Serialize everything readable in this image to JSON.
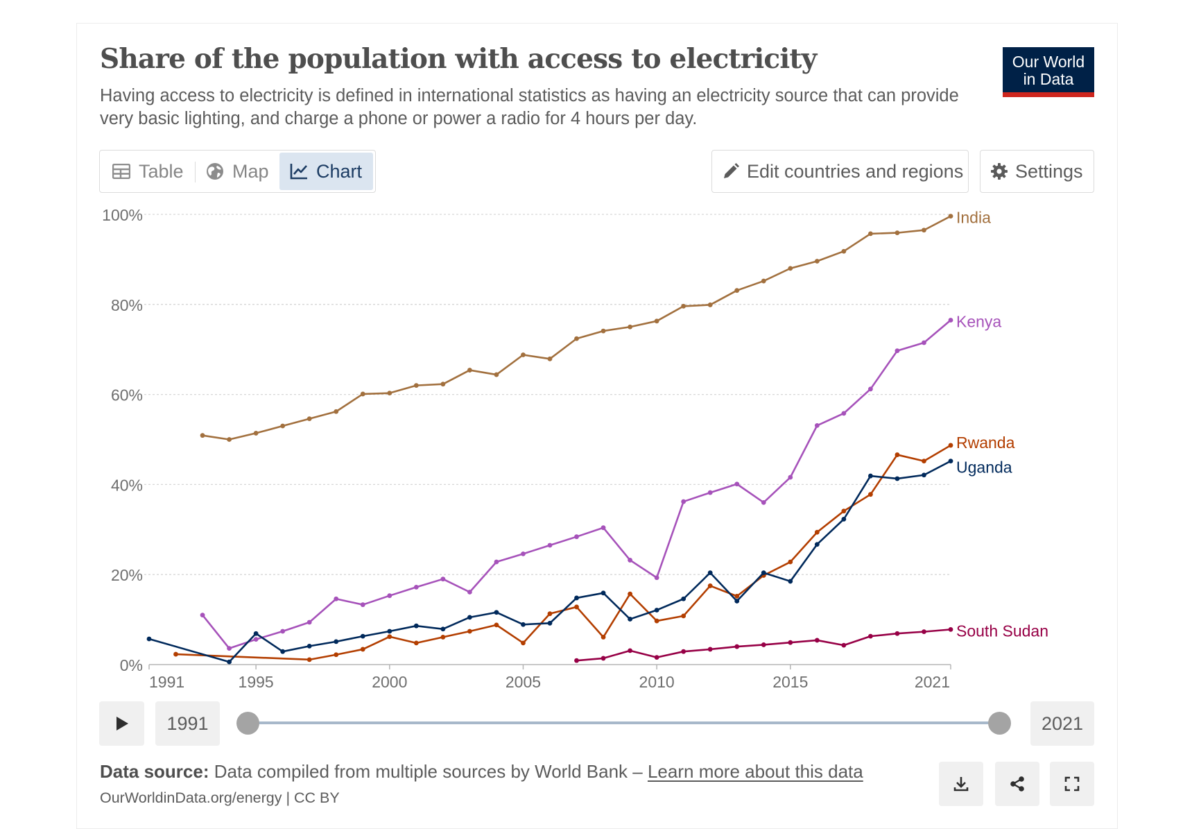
{
  "header": {
    "title": "Share of the population with access to electricity",
    "subtitle": "Having access to electricity is defined in international statistics as having an electricity source that can provide very basic lighting, and charge a phone or power a radio for 4 hours per day.",
    "logo_line1": "Our World",
    "logo_line2": "in Data"
  },
  "tabs": [
    {
      "label": "Table",
      "icon": "table-icon",
      "active": false
    },
    {
      "label": "Map",
      "icon": "globe-icon",
      "active": false
    },
    {
      "label": "Chart",
      "icon": "line-chart-icon",
      "active": true
    }
  ],
  "toolbar": {
    "edit_label": "Edit countries and regions",
    "settings_label": "Settings"
  },
  "timeline": {
    "start_year": "1991",
    "end_year": "2021"
  },
  "footer": {
    "source_label": "Data source:",
    "source_text": "Data compiled from multiple sources by World Bank –",
    "learn_more": "Learn more about this data",
    "citation": "OurWorldinData.org/energy | CC BY"
  },
  "colors": {
    "India": "#a2703e",
    "Kenya": "#a652ba",
    "Rwanda": "#b33e00",
    "Uganda": "#00295b",
    "South Sudan": "#970046",
    "logo_background": "#002147",
    "logo_stripe": "#ce261e",
    "active_tab": "#dbe5f0"
  },
  "chart_data": {
    "type": "line",
    "title": "Share of the population with access to electricity",
    "xlim": [
      1991,
      2021
    ],
    "ylim": [
      0,
      100
    ],
    "x_ticks": [
      1991,
      1995,
      2000,
      2005,
      2010,
      2015,
      2021
    ],
    "y_ticks": [
      0,
      20,
      40,
      60,
      80,
      100
    ],
    "y_tick_labels": [
      "0%",
      "20%",
      "40%",
      "60%",
      "80%",
      "100%"
    ],
    "grid": "horizontal dashed",
    "legend": "inline labels at line ends",
    "series": [
      {
        "name": "India",
        "x": [
          1993,
          1994,
          1995,
          1996,
          1997,
          1998,
          1999,
          2000,
          2001,
          2002,
          2003,
          2004,
          2005,
          2006,
          2007,
          2008,
          2009,
          2010,
          2011,
          2012,
          2013,
          2014,
          2015,
          2016,
          2017,
          2018,
          2019,
          2020,
          2021
        ],
        "y": [
          50.9,
          50,
          51.4,
          53,
          54.6,
          56.2,
          60.1,
          60.3,
          62,
          62.3,
          65.4,
          64.4,
          68.8,
          67.9,
          72.4,
          74.1,
          75,
          76.3,
          79.6,
          79.9,
          83.1,
          85.2,
          88,
          89.6,
          91.8,
          95.7,
          95.9,
          96.5,
          99.6
        ]
      },
      {
        "name": "Kenya",
        "x": [
          1993,
          1994,
          1995,
          1996,
          1997,
          1998,
          1999,
          2000,
          2001,
          2002,
          2003,
          2004,
          2005,
          2006,
          2007,
          2008,
          2009,
          2010,
          2011,
          2012,
          2013,
          2014,
          2015,
          2016,
          2017,
          2018,
          2019,
          2020,
          2021
        ],
        "y": [
          11,
          3.6,
          5.6,
          7.4,
          9.4,
          14.6,
          13.3,
          15.3,
          17.2,
          19,
          16.1,
          22.8,
          24.6,
          26.5,
          28.4,
          30.4,
          23.2,
          19.3,
          36.2,
          38.2,
          40.1,
          36,
          41.6,
          53.1,
          55.8,
          61.2,
          69.7,
          71.5,
          76.5
        ]
      },
      {
        "name": "Rwanda",
        "x": [
          1992,
          1997,
          1998,
          1999,
          2000,
          2001,
          2002,
          2003,
          2004,
          2005,
          2006,
          2007,
          2008,
          2009,
          2010,
          2011,
          2012,
          2013,
          2014,
          2015,
          2016,
          2017,
          2018,
          2019,
          2020,
          2021
        ],
        "y": [
          2.3,
          1.1,
          2.2,
          3.4,
          6.2,
          4.8,
          6.1,
          7.4,
          8.8,
          4.8,
          11.3,
          12.8,
          6.1,
          15.7,
          9.7,
          10.8,
          17.5,
          15.2,
          19.8,
          22.8,
          29.4,
          34.1,
          37.8,
          46.6,
          45.2,
          48.7
        ]
      },
      {
        "name": "Uganda",
        "x": [
          1991,
          1994,
          1995,
          1996,
          1997,
          1998,
          1999,
          2000,
          2001,
          2002,
          2003,
          2004,
          2005,
          2006,
          2007,
          2008,
          2009,
          2010,
          2011,
          2012,
          2013,
          2014,
          2015,
          2016,
          2017,
          2018,
          2019,
          2020,
          2021
        ],
        "y": [
          5.7,
          0.6,
          6.9,
          2.9,
          4.1,
          5.1,
          6.3,
          7.4,
          8.6,
          7.9,
          10.5,
          11.6,
          8.9,
          9.2,
          14.8,
          15.9,
          10.1,
          12.1,
          14.6,
          20.4,
          14.1,
          20.4,
          18.5,
          26.7,
          32.3,
          41.9,
          41.3,
          42.1,
          45.2
        ]
      },
      {
        "name": "South Sudan",
        "x": [
          2007,
          2008,
          2009,
          2010,
          2011,
          2012,
          2013,
          2014,
          2015,
          2016,
          2017,
          2018,
          2019,
          2020,
          2021
        ],
        "y": [
          0.9,
          1.4,
          3.1,
          1.6,
          2.9,
          3.4,
          4,
          4.4,
          4.9,
          5.4,
          4.3,
          6.3,
          6.9,
          7.3,
          7.8
        ]
      }
    ]
  }
}
